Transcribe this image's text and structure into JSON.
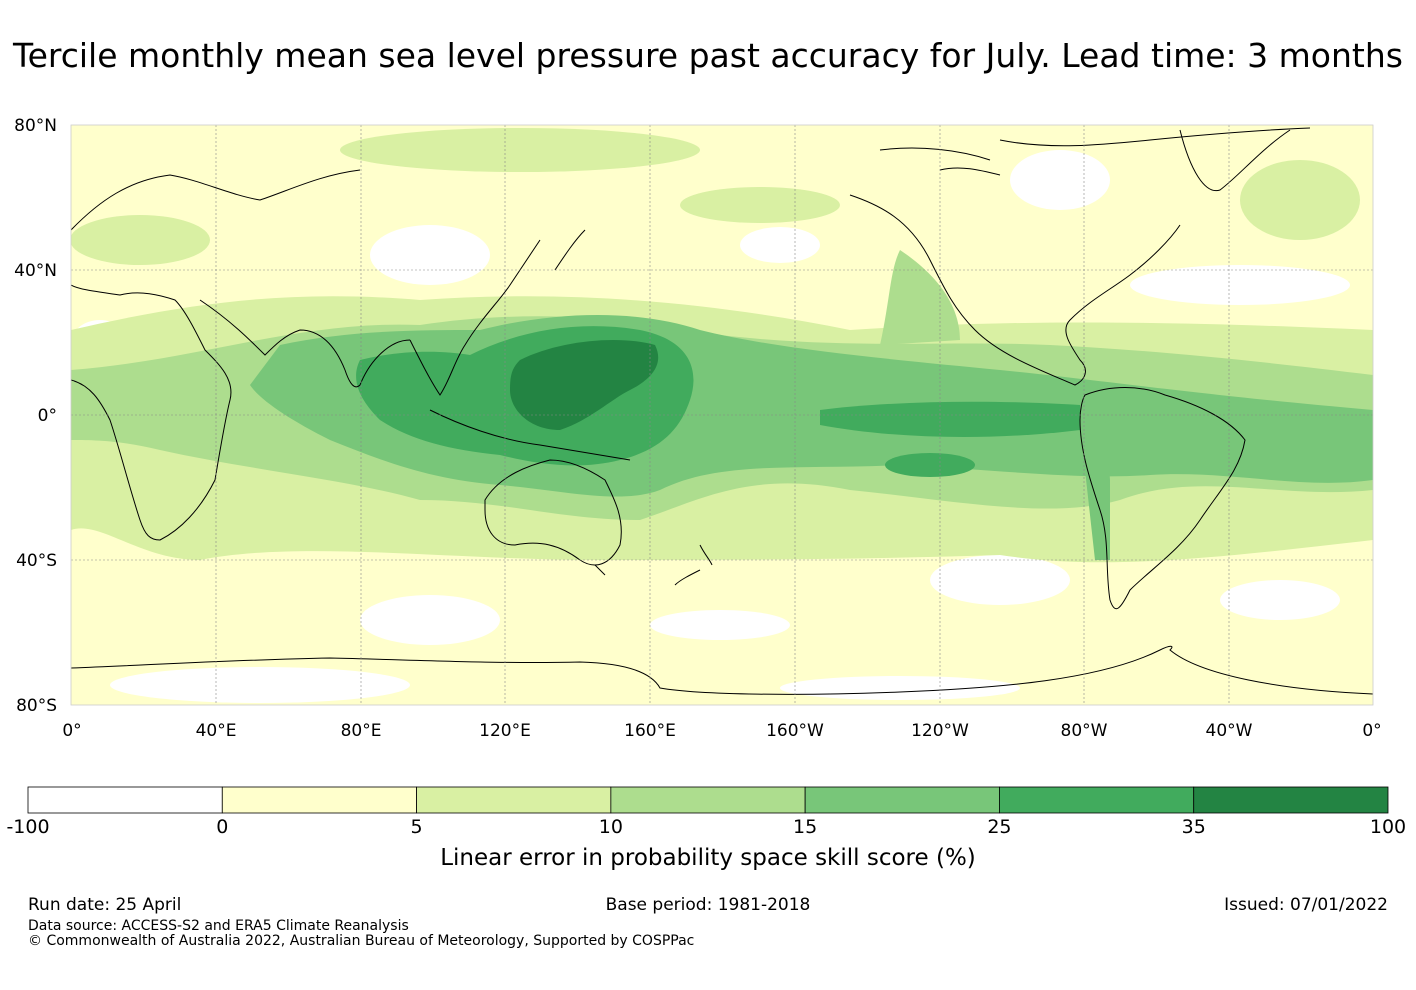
{
  "title": "Tercile monthly mean sea level pressure past accuracy for July. Lead time: 3 months",
  "map": {
    "lat_ticks": [
      "80°N",
      "40°N",
      "0°",
      "40°S",
      "80°S"
    ],
    "lon_ticks": [
      "0°",
      "40°E",
      "80°E",
      "120°E",
      "160°E",
      "160°W",
      "120°W",
      "80°W",
      "40°W",
      "0°"
    ]
  },
  "colorbar": {
    "label": "Linear error in probability space skill score (%)",
    "ticks": [
      "-100",
      "0",
      "5",
      "10",
      "15",
      "25",
      "35",
      "100"
    ],
    "colors": [
      "#ffffff",
      "#ffffcc",
      "#d9f0a3",
      "#addd8e",
      "#78c679",
      "#41ab5d",
      "#238443"
    ]
  },
  "footer": {
    "run_date": "Run date: 25 April",
    "base_period": "Base period: 1981-2018",
    "issued": "Issued: 07/01/2022",
    "data_source": "Data source: ACCESS-S2 and ERA5 Climate Reanalysis",
    "copyright": "© Commonwealth of Australia 2022, Australian Bureau of Meteorology, Supported by COSPPac"
  }
}
